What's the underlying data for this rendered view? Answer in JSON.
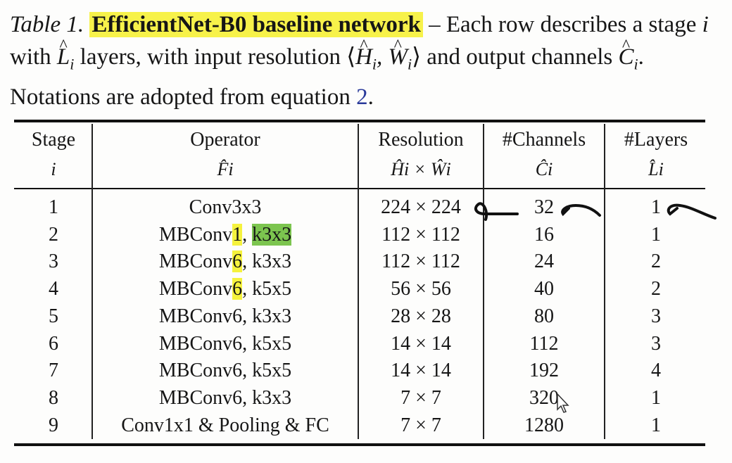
{
  "caption": {
    "label": "Table 1.",
    "title": "EfficientNet-B0 baseline network",
    "text_1": " – Each row describes a stage ",
    "var_i": "i",
    "text_2": " with ",
    "text_3": " layers, with input resolution ⟨",
    "text_4": "⟩ and output channels ",
    "text_5": ". Notations are adopted from equation ",
    "eq_ref": "2",
    "text_6": "."
  },
  "table": {
    "headers": [
      {
        "top": "Stage",
        "sub": "i"
      },
      {
        "top": "Operator",
        "sub": "F̂i"
      },
      {
        "top": "Resolution",
        "sub": "Ĥi × Ŵi"
      },
      {
        "top": "#Channels",
        "sub": "Ĉi"
      },
      {
        "top": "#Layers",
        "sub": "L̂i"
      }
    ],
    "rows": [
      {
        "stage": "1",
        "operator": "Conv3x3",
        "resolution": "224 × 224",
        "channels": "32",
        "layers": "1"
      },
      {
        "stage": "2",
        "operator": "MBConv1, k3x3",
        "resolution": "112 × 112",
        "channels": "16",
        "layers": "1"
      },
      {
        "stage": "3",
        "operator": "MBConv6, k3x3",
        "resolution": "112 × 112",
        "channels": "24",
        "layers": "2"
      },
      {
        "stage": "4",
        "operator": "MBConv6, k5x5",
        "resolution": "56 × 56",
        "channels": "40",
        "layers": "2"
      },
      {
        "stage": "5",
        "operator": "MBConv6, k3x3",
        "resolution": "28 × 28",
        "channels": "80",
        "layers": "3"
      },
      {
        "stage": "6",
        "operator": "MBConv6, k5x5",
        "resolution": "14 × 14",
        "channels": "112",
        "layers": "3"
      },
      {
        "stage": "7",
        "operator": "MBConv6, k5x5",
        "resolution": "14 × 14",
        "channels": "192",
        "layers": "4"
      },
      {
        "stage": "8",
        "operator": "MBConv6, k3x3",
        "resolution": "7 × 7",
        "channels": "320",
        "layers": "1"
      },
      {
        "stage": "9",
        "operator": "Conv1x1 & Pooling & FC",
        "resolution": "7 × 7",
        "channels": "1280",
        "layers": "1"
      }
    ],
    "op_parts": {
      "row2_a": "MBConv",
      "row2_b": "1",
      "row2_c": ", ",
      "row2_d": "k3x3",
      "row3_a": "MBConv",
      "row3_b": "6",
      "row3_c": ", k3x3",
      "row4_a": "MBConv",
      "row4_b": "6",
      "row4_c": ", k5x5"
    }
  },
  "colors": {
    "highlight_yellow": "#f5f23d",
    "highlight_green": "#7cc54f",
    "ink": "#111111",
    "link": "#2a3a9a"
  }
}
